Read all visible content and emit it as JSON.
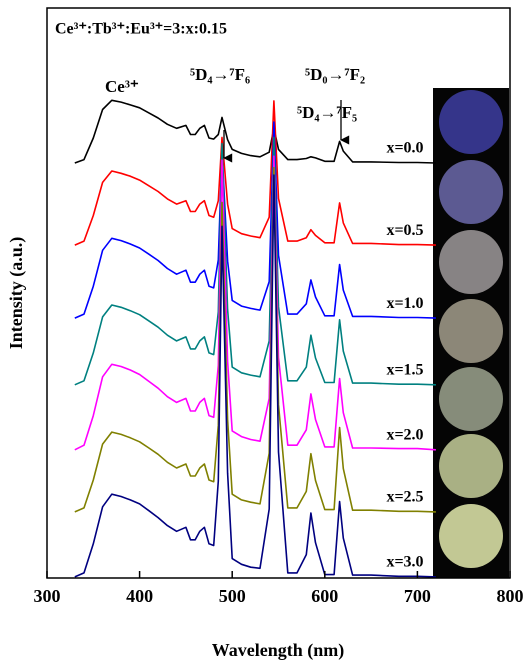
{
  "chart_data": {
    "type": "line",
    "title": "Ce³⁺:Tb³⁺:Eu³⁺=3:x:0.15",
    "x_label": "Wavelength (nm)",
    "y_label": "Intensity (a.u.)",
    "annotations": [
      "Ce³⁺",
      "⁵D₄→⁷F₆",
      "⁵D₄→⁷F₅",
      "⁵D₀→⁷F₂"
    ],
    "xlim": [
      300,
      800
    ],
    "xticks": [
      300,
      400,
      500,
      600,
      700,
      800
    ],
    "ylim": [
      0,
      100
    ],
    "x": [
      330,
      340,
      350,
      360,
      370,
      380,
      390,
      400,
      410,
      420,
      430,
      440,
      450,
      455,
      460,
      465,
      470,
      475,
      480,
      485,
      489,
      495,
      500,
      510,
      520,
      530,
      540,
      545,
      550,
      560,
      570,
      580,
      585,
      590,
      600,
      610,
      616,
      620,
      630,
      650,
      680,
      700,
      720
    ],
    "series": [
      {
        "name": "x=0.0",
        "color": "#000000",
        "values": [
          72.8,
          73.4,
          77.2,
          82.2,
          83.8,
          83.5,
          83.0,
          82.5,
          81.6,
          80.7,
          79.6,
          78.9,
          79.4,
          77.8,
          77.8,
          78.9,
          79.4,
          77.2,
          77.0,
          77.8,
          80.8,
          76.9,
          75.2,
          74.5,
          74.1,
          73.9,
          74.7,
          78.9,
          75.2,
          73.4,
          73.4,
          73.6,
          73.9,
          73.7,
          73.1,
          73.1,
          76.6,
          74.9,
          73.0,
          73.0,
          72.9,
          72.9,
          72.8
        ]
      },
      {
        "name": "x=0.5",
        "color": "#ff0000",
        "values": [
          58.4,
          59.1,
          63.6,
          69.4,
          71.4,
          71.0,
          70.5,
          69.8,
          68.8,
          67.8,
          66.5,
          65.6,
          66.2,
          64.3,
          64.3,
          65.6,
          66.2,
          63.6,
          63.3,
          66.2,
          77.3,
          65.6,
          61.3,
          60.4,
          60.0,
          59.7,
          63.3,
          83.7,
          66.6,
          59.1,
          59.1,
          59.7,
          61.1,
          60.1,
          58.8,
          58.8,
          65.8,
          62.3,
          58.7,
          58.7,
          58.5,
          58.5,
          58.4
        ]
      },
      {
        "name": "x=1.0",
        "color": "#0000ff",
        "values": [
          45.6,
          46.3,
          51.2,
          57.5,
          59.6,
          59.2,
          58.6,
          57.9,
          56.8,
          55.7,
          54.3,
          53.3,
          54.0,
          51.9,
          51.9,
          53.3,
          54.0,
          51.2,
          50.9,
          55.8,
          74.9,
          55.6,
          48.7,
          47.7,
          47.3,
          47.0,
          52.0,
          80.0,
          56.6,
          46.3,
          46.3,
          48.1,
          52.3,
          49.3,
          46.0,
          46.0,
          55.0,
          50.5,
          45.9,
          45.9,
          45.7,
          45.7,
          45.6
        ]
      },
      {
        "name": "x=1.5",
        "color": "#008080",
        "values": [
          33.9,
          34.6,
          39.5,
          45.8,
          47.9,
          47.5,
          46.9,
          46.2,
          45.1,
          44.0,
          42.6,
          41.6,
          42.3,
          40.2,
          40.2,
          41.6,
          42.3,
          39.5,
          39.2,
          46.7,
          76.2,
          47.1,
          37.0,
          36.0,
          35.6,
          35.3,
          41.6,
          77.3,
          47.6,
          34.6,
          34.6,
          37.0,
          42.6,
          38.6,
          34.3,
          34.3,
          45.3,
          39.8,
          34.2,
          34.2,
          34.0,
          34.0,
          33.9
        ]
      },
      {
        "name": "x=2.0",
        "color": "#ff00ff",
        "values": [
          22.5,
          23.3,
          28.5,
          35.3,
          37.5,
          37.1,
          36.5,
          35.7,
          34.5,
          33.3,
          31.8,
          30.8,
          31.5,
          29.3,
          29.3,
          30.8,
          31.5,
          28.5,
          28.2,
          37.3,
          73.3,
          38.0,
          25.8,
          24.8,
          24.3,
          24.0,
          31.5,
          74.0,
          38.7,
          23.3,
          23.3,
          26.0,
          32.3,
          27.8,
          23.0,
          23.0,
          35.0,
          29.0,
          22.8,
          22.8,
          22.7,
          22.7,
          22.5
        ]
      },
      {
        "name": "x=2.5",
        "color": "#808000",
        "values": [
          11.6,
          12.3,
          17.2,
          23.5,
          25.6,
          25.2,
          24.6,
          23.9,
          22.8,
          21.7,
          20.3,
          19.3,
          20.0,
          17.9,
          17.9,
          19.3,
          20.0,
          17.2,
          16.9,
          26.8,
          65.9,
          27.8,
          14.7,
          13.7,
          13.3,
          13.0,
          21.9,
          72.0,
          30.4,
          12.3,
          12.3,
          15.2,
          21.8,
          17.1,
          12.0,
          12.0,
          26.4,
          19.2,
          11.9,
          11.9,
          11.7,
          11.7,
          11.6
        ]
      },
      {
        "name": "x=3.0",
        "color": "#000080",
        "values": [
          0.2,
          0.9,
          6.0,
          12.5,
          14.7,
          14.3,
          13.7,
          13.0,
          11.8,
          10.6,
          9.2,
          8.2,
          8.9,
          6.7,
          6.7,
          8.2,
          8.9,
          6.0,
          5.7,
          17.0,
          61.7,
          18.4,
          3.4,
          2.4,
          1.9,
          1.7,
          12.1,
          70.7,
          22.1,
          0.9,
          0.9,
          4.1,
          11.4,
          6.2,
          0.6,
          0.6,
          13.4,
          7.0,
          0.5,
          0.5,
          0.3,
          0.3,
          0.2
        ]
      }
    ]
  }
}
